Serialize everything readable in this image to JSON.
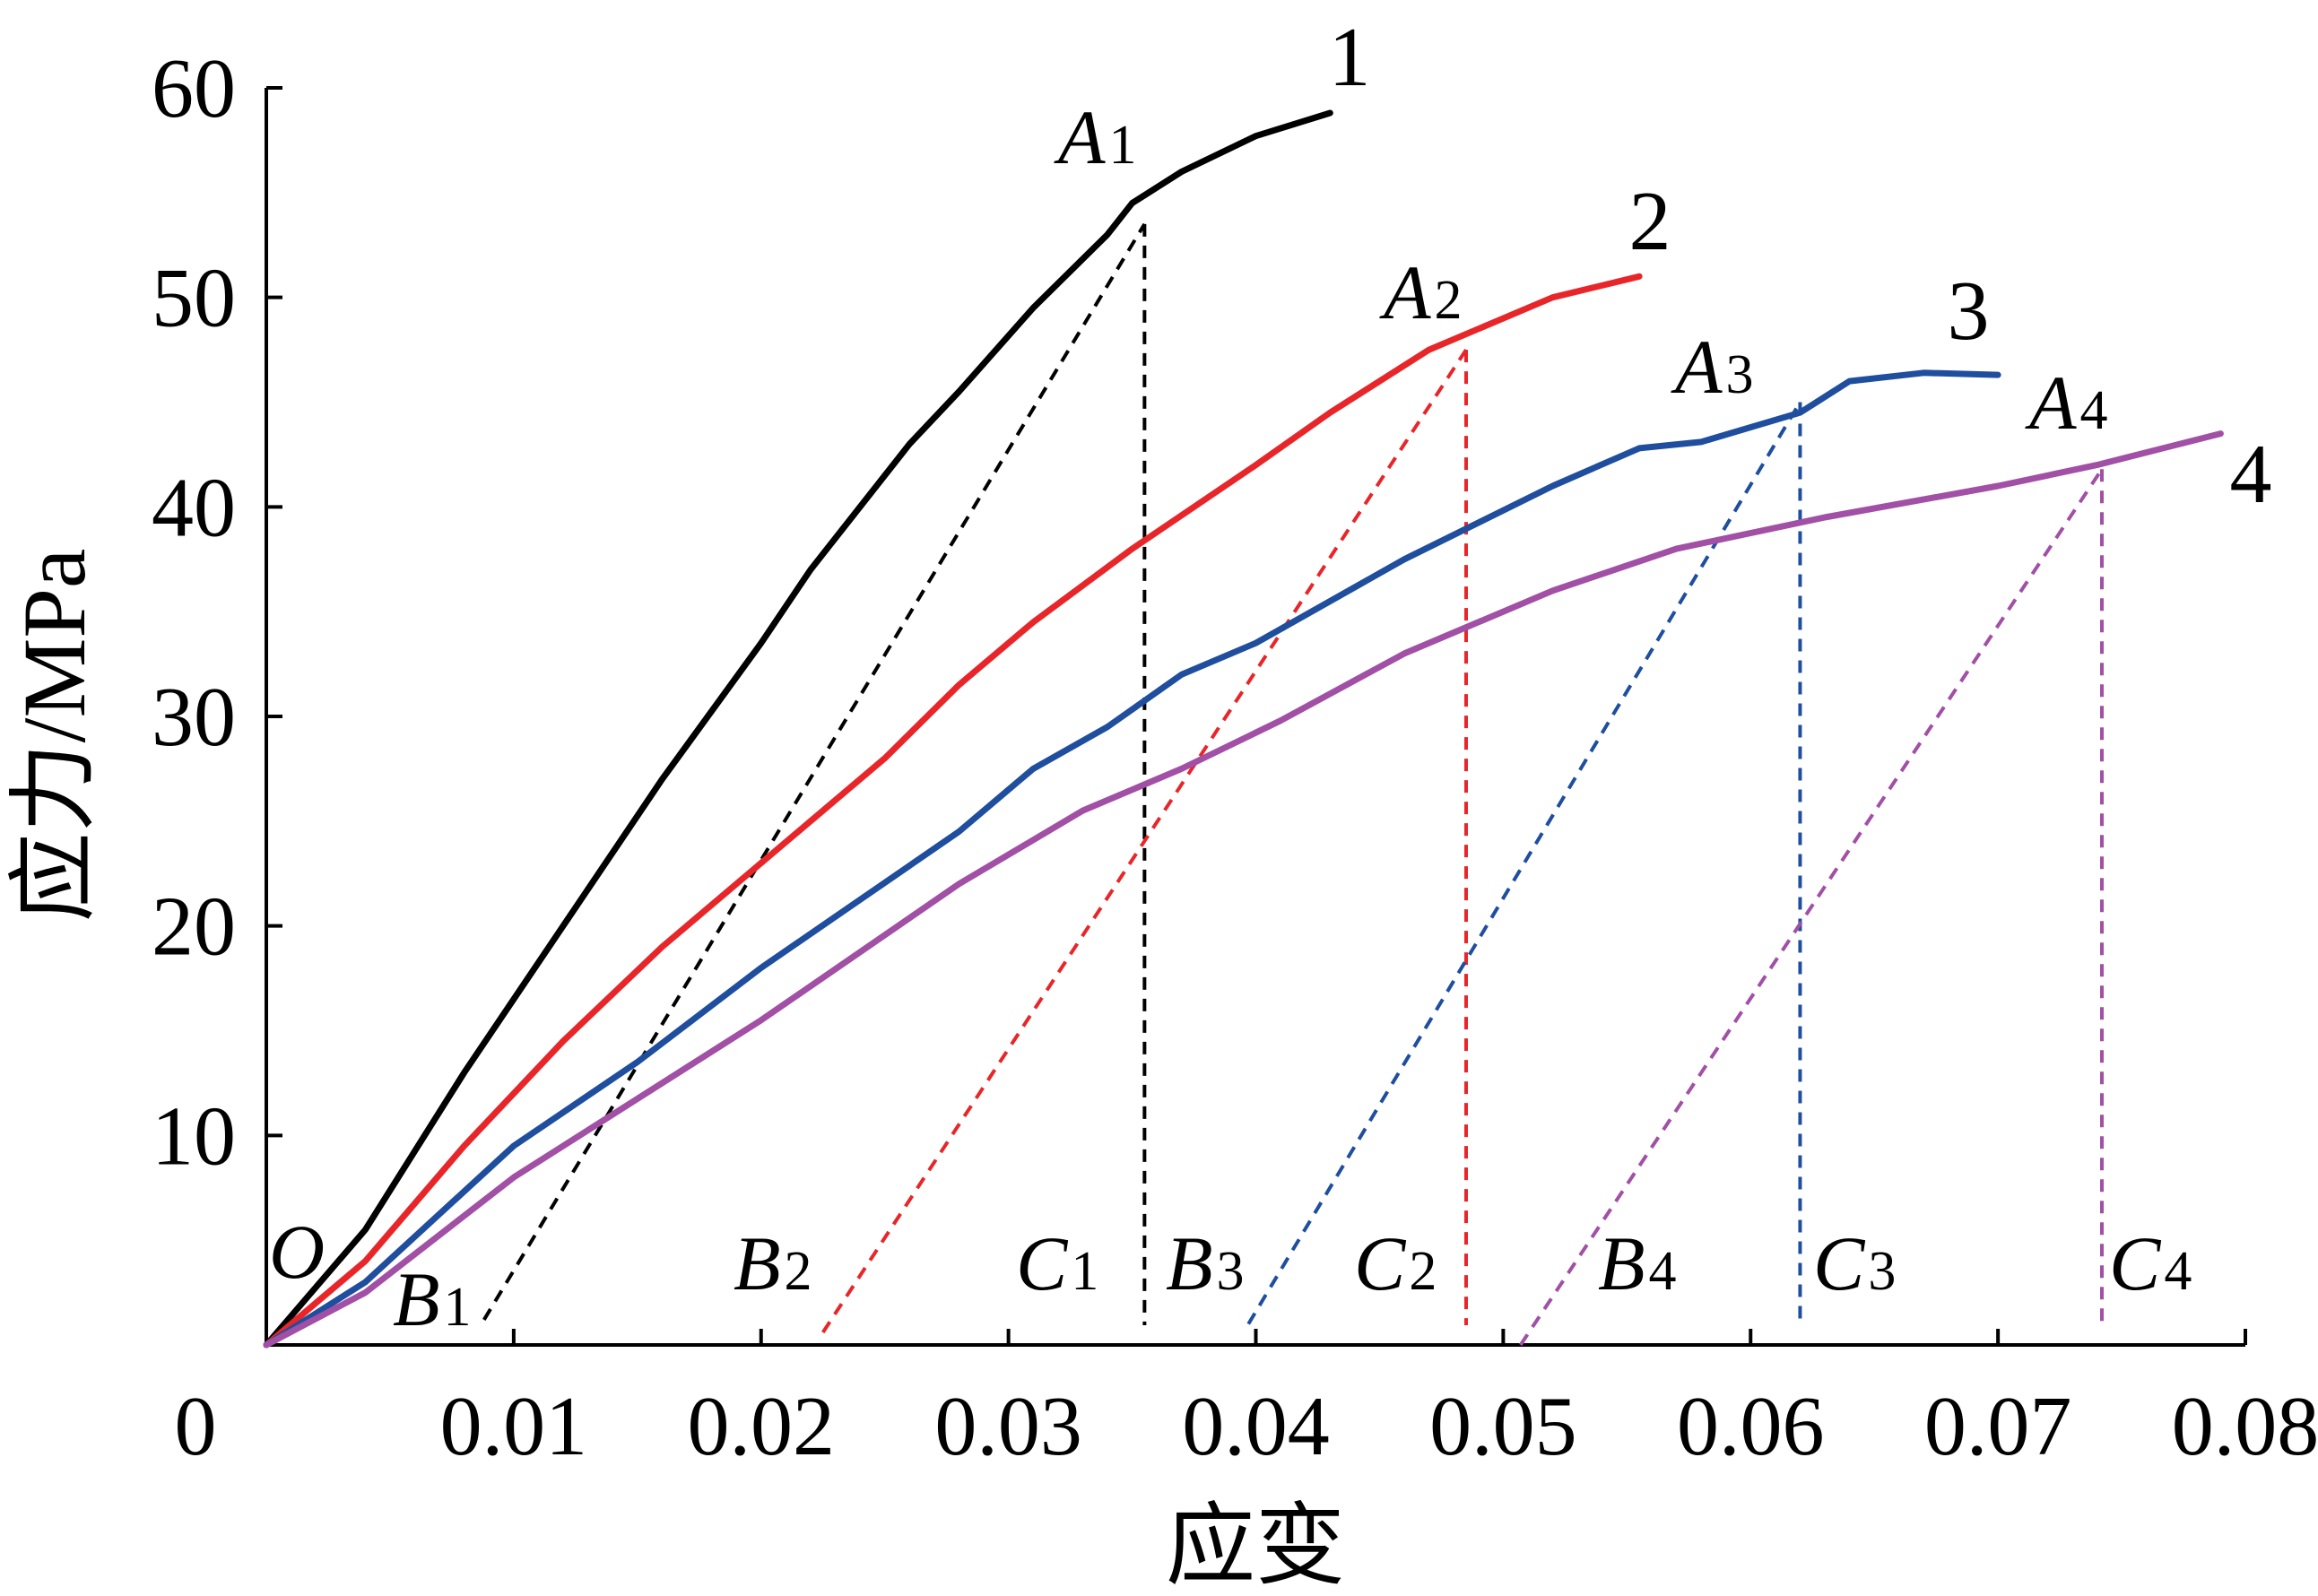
{
  "chart_data": {
    "type": "line",
    "xlabel": "应变",
    "ylabel": "应力/MPa",
    "xlim": [
      0,
      0.08
    ],
    "ylim": [
      0,
      60
    ],
    "x_ticks": [
      "0",
      "0.01",
      "0.02",
      "0.03",
      "0.04",
      "0.05",
      "0.06",
      "0.07",
      "0.08"
    ],
    "y_ticks": [
      "10",
      "20",
      "30",
      "40",
      "50",
      "60"
    ],
    "grid": false,
    "series": [
      {
        "name": "1",
        "color": "#000000",
        "x": [
          0,
          0.004,
          0.008,
          0.012,
          0.016,
          0.02,
          0.022,
          0.026,
          0.028,
          0.031,
          0.034,
          0.035,
          0.037,
          0.04,
          0.043
        ],
        "y": [
          0,
          5.5,
          13,
          20,
          27,
          33.5,
          37,
          43,
          45.5,
          49.5,
          53,
          54.5,
          56,
          57.7,
          58.8
        ]
      },
      {
        "name": "2",
        "color": "#e8262a",
        "x": [
          0,
          0.004,
          0.008,
          0.012,
          0.016,
          0.022,
          0.025,
          0.028,
          0.031,
          0.035,
          0.04,
          0.043,
          0.047,
          0.052,
          0.0555
        ],
        "y": [
          0,
          4,
          9.5,
          14.5,
          19,
          25,
          28,
          31.5,
          34.5,
          38,
          42,
          44.5,
          47.5,
          50,
          51
        ]
      },
      {
        "name": "3",
        "color": "#1f4e9e",
        "x": [
          0,
          0.004,
          0.01,
          0.015,
          0.02,
          0.028,
          0.031,
          0.034,
          0.037,
          0.04,
          0.046,
          0.052,
          0.0555,
          0.058,
          0.062,
          0.064,
          0.067,
          0.07
        ],
        "y": [
          0,
          3,
          9.5,
          13.5,
          18,
          24.5,
          27.5,
          29.5,
          32,
          33.5,
          37.5,
          41,
          42.8,
          43.1,
          44.5,
          46,
          46.4,
          46.3
        ]
      },
      {
        "name": "4",
        "color": "#a150a5",
        "x": [
          0,
          0.004,
          0.01,
          0.02,
          0.028,
          0.033,
          0.037,
          0.041,
          0.046,
          0.052,
          0.057,
          0.063,
          0.07,
          0.074,
          0.079
        ],
        "y": [
          0,
          2.5,
          8,
          15.5,
          22,
          25.5,
          27.5,
          29.8,
          33,
          36,
          38,
          39.5,
          41,
          42,
          43.5
        ]
      }
    ],
    "annotations": [
      {
        "label": "A",
        "sub": "1",
        "curve": "1",
        "A": [
          0.0355,
          53.5
        ],
        "B": [
          0.0088,
          1.2
        ],
        "C": 0.0355,
        "color": "#000000"
      },
      {
        "label": "A",
        "sub": "2",
        "curve": "2",
        "A": [
          0.0485,
          47.5
        ],
        "B": [
          0.0225,
          0.6
        ],
        "C": 0.0485,
        "color": "#e8262a"
      },
      {
        "label": "A",
        "sub": "3",
        "curve": "3",
        "A": [
          0.062,
          45.0
        ],
        "B": [
          0.0397,
          1.0
        ],
        "C": 0.062,
        "color": "#1f4e9e"
      },
      {
        "label": "A",
        "sub": "4",
        "curve": "4",
        "A": [
          0.0742,
          41.8
        ],
        "B": [
          0.0507,
          0.0
        ],
        "C": 0.0742,
        "color": "#a150a5"
      }
    ],
    "point_labels": {
      "O": "O",
      "B": [
        "B",
        "B",
        "B",
        "B"
      ],
      "C": [
        "C",
        "C",
        "C",
        "C"
      ],
      "subs": [
        "1",
        "2",
        "3",
        "4"
      ]
    }
  }
}
